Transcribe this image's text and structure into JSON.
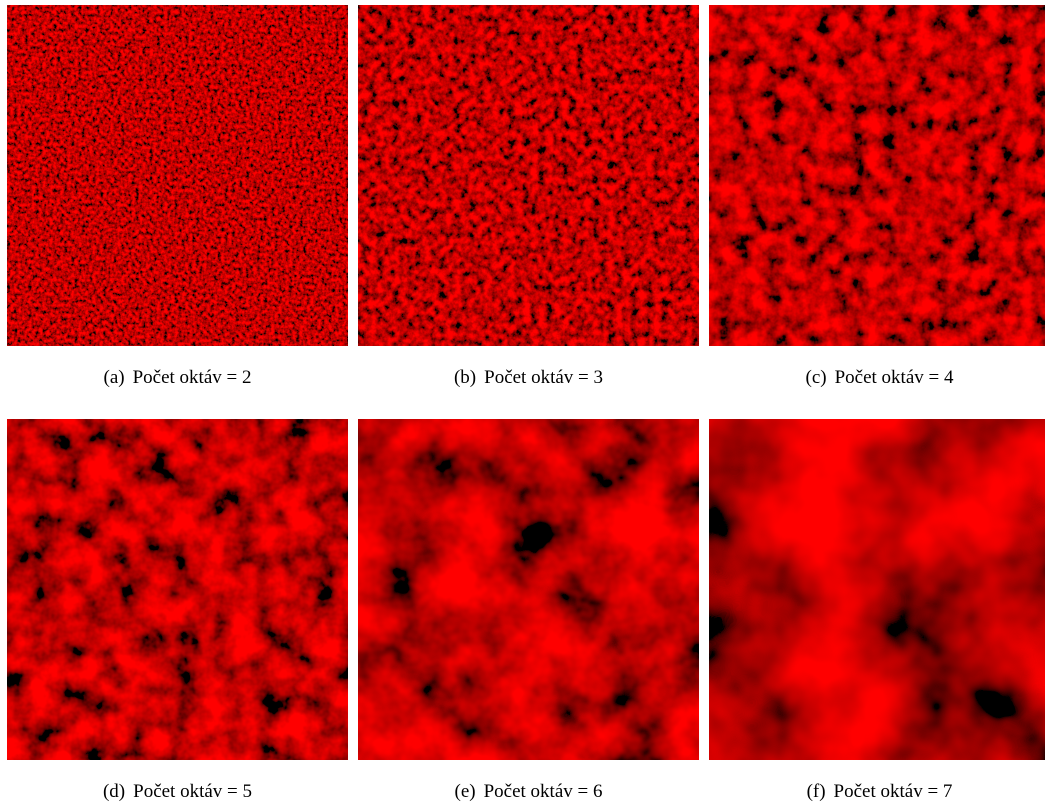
{
  "figure": {
    "panels": [
      {
        "label": "(a)",
        "caption": "Počet oktáv = 2"
      },
      {
        "label": "(b)",
        "caption": "Počet oktáv = 3"
      },
      {
        "label": "(c)",
        "caption": "Počet oktáv = 4"
      },
      {
        "label": "(d)",
        "caption": "Počet oktáv = 5"
      },
      {
        "label": "(e)",
        "caption": "Počet oktáv = 6"
      },
      {
        "label": "(f)",
        "caption": "Počet oktáv = 7"
      }
    ]
  }
}
